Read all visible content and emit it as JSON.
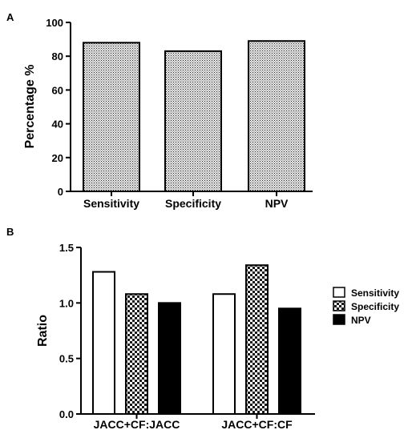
{
  "chart_data": [
    {
      "panel_label": "A",
      "type": "bar",
      "ylabel": "Percentage %",
      "ylim": [
        0,
        100
      ],
      "yticks": [
        "0",
        "20",
        "40",
        "60",
        "80",
        "100"
      ],
      "categories": [
        "Sensitivity",
        "Specificity",
        "NPV"
      ],
      "values": [
        88,
        83,
        89
      ],
      "fill": "dotted grey pattern",
      "grid": false
    },
    {
      "panel_label": "B",
      "type": "bar",
      "ylabel": "Ratio",
      "ylim": [
        0,
        1.5
      ],
      "yticks": [
        "0.0",
        "0.5",
        "1.0",
        "1.5"
      ],
      "categories": [
        "JACC+CF:JACC",
        "JACC+CF:CF"
      ],
      "series": [
        {
          "name": "Sensitivity",
          "values": [
            1.28,
            1.08
          ],
          "fill": "white"
        },
        {
          "name": "Specificity",
          "values": [
            1.08,
            1.34
          ],
          "fill": "checkerboard"
        },
        {
          "name": "NPV",
          "values": [
            1.0,
            0.95
          ],
          "fill": "#000000"
        }
      ],
      "legend_position": "right",
      "grid": false
    }
  ]
}
